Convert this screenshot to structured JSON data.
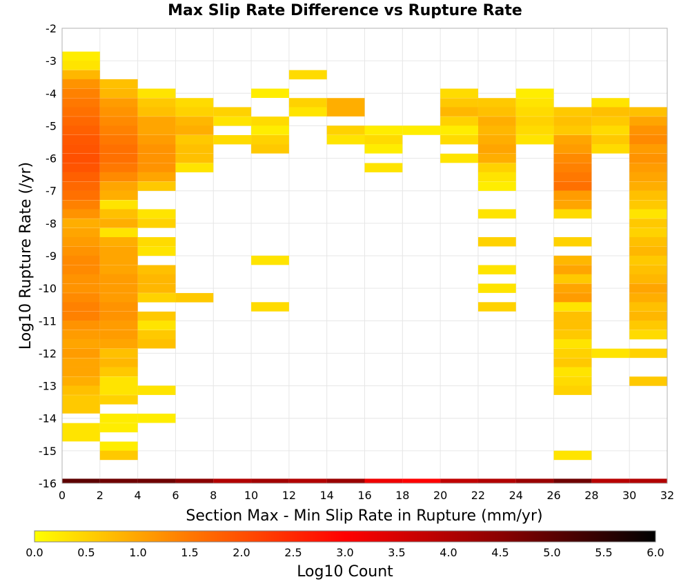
{
  "chart_data": {
    "type": "heatmap",
    "title": "Max Slip Rate Difference vs Rupture Rate",
    "xlabel": "Section Max - Min Slip Rate in Rupture (mm/yr)",
    "ylabel": "Log10 Rupture Rate (/yr)",
    "xlim": [
      0,
      32
    ],
    "ylim": [
      -16,
      -2
    ],
    "x_ticks": [
      "0",
      "2",
      "4",
      "6",
      "8",
      "10",
      "12",
      "14",
      "16",
      "18",
      "20",
      "22",
      "24",
      "26",
      "28",
      "30",
      "32"
    ],
    "y_ticks": [
      "-2",
      "-3",
      "-4",
      "-5",
      "-6",
      "-7",
      "-8",
      "-9",
      "-10",
      "-11",
      "-12",
      "-13",
      "-14",
      "-15",
      "-16"
    ],
    "grid": true,
    "x_bin_width": 2,
    "y_bin_height": 0.2857,
    "cells": [
      [
        1,
        -2.86,
        0.2
      ],
      [
        1,
        -3.14,
        0.3
      ],
      [
        1,
        -3.43,
        0.8
      ],
      [
        1,
        -3.71,
        1.2
      ],
      [
        1,
        -4.0,
        1.4
      ],
      [
        1,
        -4.29,
        1.5
      ],
      [
        1,
        -4.57,
        1.6
      ],
      [
        1,
        -4.86,
        1.7
      ],
      [
        1,
        -5.14,
        1.8
      ],
      [
        1,
        -5.43,
        1.9
      ],
      [
        1,
        -5.71,
        1.95
      ],
      [
        1,
        -6.0,
        2.0
      ],
      [
        1,
        -6.29,
        1.95
      ],
      [
        1,
        -6.57,
        1.8
      ],
      [
        1,
        -6.86,
        1.7
      ],
      [
        1,
        -7.14,
        1.6
      ],
      [
        1,
        -7.43,
        1.4
      ],
      [
        1,
        -7.71,
        1.2
      ],
      [
        1,
        -8.0,
        0.9
      ],
      [
        1,
        -8.29,
        1.0
      ],
      [
        1,
        -8.57,
        1.1
      ],
      [
        1,
        -8.86,
        1.2
      ],
      [
        1,
        -9.14,
        1.3
      ],
      [
        1,
        -9.43,
        1.3
      ],
      [
        1,
        -9.71,
        1.2
      ],
      [
        1,
        -10.0,
        1.2
      ],
      [
        1,
        -10.29,
        1.3
      ],
      [
        1,
        -10.57,
        1.4
      ],
      [
        1,
        -10.86,
        1.4
      ],
      [
        1,
        -11.14,
        1.2
      ],
      [
        1,
        -11.43,
        1.1
      ],
      [
        1,
        -11.71,
        1.0
      ],
      [
        1,
        -12.0,
        1.1
      ],
      [
        1,
        -12.29,
        1.0
      ],
      [
        1,
        -12.57,
        1.0
      ],
      [
        1,
        -12.86,
        0.9
      ],
      [
        1,
        -13.14,
        0.7
      ],
      [
        1,
        -13.43,
        0.6
      ],
      [
        1,
        -13.71,
        0.6
      ],
      [
        1,
        -14.29,
        0.3
      ],
      [
        1,
        -14.57,
        0.3
      ],
      [
        3,
        -3.71,
        0.7
      ],
      [
        3,
        -4.0,
        0.8
      ],
      [
        3,
        -4.29,
        1.1
      ],
      [
        3,
        -4.57,
        1.2
      ],
      [
        3,
        -4.86,
        1.3
      ],
      [
        3,
        -5.14,
        1.4
      ],
      [
        3,
        -5.43,
        1.5
      ],
      [
        3,
        -5.71,
        1.6
      ],
      [
        3,
        -6.0,
        1.6
      ],
      [
        3,
        -6.29,
        1.5
      ],
      [
        3,
        -6.57,
        1.3
      ],
      [
        3,
        -6.86,
        1.0
      ],
      [
        3,
        -7.14,
        0.9
      ],
      [
        3,
        -7.43,
        0.3
      ],
      [
        3,
        -7.71,
        0.7
      ],
      [
        3,
        -8.0,
        0.9
      ],
      [
        3,
        -8.29,
        0.3
      ],
      [
        3,
        -8.57,
        0.9
      ],
      [
        3,
        -8.86,
        1.0
      ],
      [
        3,
        -9.14,
        1.0
      ],
      [
        3,
        -9.43,
        1.0
      ],
      [
        3,
        -9.71,
        1.1
      ],
      [
        3,
        -10.0,
        1.1
      ],
      [
        3,
        -10.29,
        1.1
      ],
      [
        3,
        -10.57,
        1.2
      ],
      [
        3,
        -10.86,
        1.2
      ],
      [
        3,
        -11.14,
        1.1
      ],
      [
        3,
        -11.43,
        1.1
      ],
      [
        3,
        -11.71,
        1.0
      ],
      [
        3,
        -12.0,
        0.7
      ],
      [
        3,
        -12.29,
        0.8
      ],
      [
        3,
        -12.57,
        0.6
      ],
      [
        3,
        -12.86,
        0.3
      ],
      [
        3,
        -13.14,
        0.3
      ],
      [
        3,
        -13.43,
        0.5
      ],
      [
        3,
        -14.0,
        0.2
      ],
      [
        3,
        -14.29,
        0.2
      ],
      [
        3,
        -14.86,
        0.2
      ],
      [
        3,
        -15.14,
        0.6
      ],
      [
        5,
        -4.0,
        0.3
      ],
      [
        5,
        -4.29,
        0.6
      ],
      [
        5,
        -4.57,
        0.7
      ],
      [
        5,
        -4.86,
        1.0
      ],
      [
        5,
        -5.14,
        1.0
      ],
      [
        5,
        -5.43,
        1.1
      ],
      [
        5,
        -5.71,
        1.2
      ],
      [
        5,
        -6.0,
        1.2
      ],
      [
        5,
        -6.29,
        1.2
      ],
      [
        5,
        -6.57,
        1.0
      ],
      [
        5,
        -6.86,
        0.6
      ],
      [
        5,
        -7.71,
        0.3
      ],
      [
        5,
        -8.0,
        0.5
      ],
      [
        5,
        -8.57,
        0.4
      ],
      [
        5,
        -8.86,
        0.3
      ],
      [
        5,
        -9.43,
        0.7
      ],
      [
        5,
        -9.71,
        0.8
      ],
      [
        5,
        -10.0,
        0.8
      ],
      [
        5,
        -10.29,
        0.5
      ],
      [
        5,
        -10.86,
        0.6
      ],
      [
        5,
        -11.14,
        0.3
      ],
      [
        5,
        -11.43,
        0.6
      ],
      [
        5,
        -11.71,
        0.7
      ],
      [
        5,
        -13.14,
        0.3
      ],
      [
        5,
        -14.0,
        0.2
      ],
      [
        7,
        -4.29,
        0.4
      ],
      [
        7,
        -4.57,
        0.5
      ],
      [
        7,
        -4.86,
        0.8
      ],
      [
        7,
        -5.14,
        0.9
      ],
      [
        7,
        -5.43,
        0.6
      ],
      [
        7,
        -5.71,
        0.7
      ],
      [
        7,
        -6.0,
        0.7
      ],
      [
        7,
        -6.29,
        0.3
      ],
      [
        7,
        -10.29,
        0.6
      ],
      [
        9,
        -4.57,
        0.5
      ],
      [
        9,
        -4.86,
        0.3
      ],
      [
        9,
        -5.43,
        0.4
      ],
      [
        11,
        -4.0,
        0.2
      ],
      [
        11,
        -4.86,
        0.4
      ],
      [
        11,
        -5.14,
        0.2
      ],
      [
        11,
        -5.43,
        0.5
      ],
      [
        11,
        -5.71,
        0.6
      ],
      [
        11,
        -9.14,
        0.3
      ],
      [
        11,
        -10.57,
        0.4
      ],
      [
        13,
        -3.43,
        0.4
      ],
      [
        13,
        -4.29,
        0.5
      ],
      [
        13,
        -4.57,
        0.3
      ],
      [
        15,
        -4.29,
        0.9
      ],
      [
        15,
        -4.57,
        0.9
      ],
      [
        15,
        -5.14,
        0.5
      ],
      [
        15,
        -5.43,
        0.3
      ],
      [
        17,
        -5.14,
        0.2
      ],
      [
        17,
        -5.43,
        0.4
      ],
      [
        17,
        -5.71,
        0.2
      ],
      [
        17,
        -6.29,
        0.3
      ],
      [
        19,
        -5.14,
        0.2
      ],
      [
        21,
        -4.0,
        0.4
      ],
      [
        21,
        -4.29,
        0.6
      ],
      [
        21,
        -4.57,
        0.8
      ],
      [
        21,
        -4.86,
        0.5
      ],
      [
        21,
        -5.14,
        0.2
      ],
      [
        21,
        -5.43,
        0.4
      ],
      [
        21,
        -6.0,
        0.3
      ],
      [
        23,
        -4.29,
        0.6
      ],
      [
        23,
        -4.57,
        0.7
      ],
      [
        23,
        -4.86,
        0.9
      ],
      [
        23,
        -5.14,
        0.8
      ],
      [
        23,
        -5.43,
        0.9
      ],
      [
        23,
        -5.71,
        1.0
      ],
      [
        23,
        -6.0,
        0.9
      ],
      [
        23,
        -6.29,
        0.5
      ],
      [
        23,
        -6.57,
        0.3
      ],
      [
        23,
        -6.86,
        0.2
      ],
      [
        23,
        -7.71,
        0.3
      ],
      [
        23,
        -8.57,
        0.5
      ],
      [
        23,
        -9.43,
        0.3
      ],
      [
        23,
        -10.0,
        0.3
      ],
      [
        23,
        -10.57,
        0.5
      ],
      [
        25,
        -4.0,
        0.2
      ],
      [
        25,
        -4.29,
        0.3
      ],
      [
        25,
        -4.57,
        0.4
      ],
      [
        25,
        -4.86,
        0.5
      ],
      [
        25,
        -5.14,
        0.4
      ],
      [
        25,
        -5.43,
        0.3
      ],
      [
        27,
        -4.57,
        0.6
      ],
      [
        27,
        -4.86,
        0.7
      ],
      [
        27,
        -5.14,
        0.6
      ],
      [
        27,
        -5.43,
        1.0
      ],
      [
        27,
        -5.71,
        1.1
      ],
      [
        27,
        -6.0,
        1.3
      ],
      [
        27,
        -6.29,
        1.4
      ],
      [
        27,
        -6.57,
        1.5
      ],
      [
        27,
        -6.86,
        1.6
      ],
      [
        27,
        -7.14,
        1.1
      ],
      [
        27,
        -7.43,
        1.0
      ],
      [
        27,
        -7.71,
        0.4
      ],
      [
        27,
        -8.57,
        0.5
      ],
      [
        27,
        -9.14,
        0.8
      ],
      [
        27,
        -9.43,
        1.0
      ],
      [
        27,
        -9.71,
        0.6
      ],
      [
        27,
        -10.0,
        1.0
      ],
      [
        27,
        -10.29,
        1.1
      ],
      [
        27,
        -10.57,
        0.3
      ],
      [
        27,
        -10.86,
        0.7
      ],
      [
        27,
        -11.14,
        0.7
      ],
      [
        27,
        -11.43,
        0.6
      ],
      [
        27,
        -11.71,
        0.3
      ],
      [
        27,
        -12.0,
        0.5
      ],
      [
        27,
        -12.29,
        0.6
      ],
      [
        27,
        -12.57,
        0.3
      ],
      [
        27,
        -12.86,
        0.4
      ],
      [
        27,
        -13.14,
        0.5
      ],
      [
        27,
        -15.14,
        0.3
      ],
      [
        29,
        -4.29,
        0.3
      ],
      [
        29,
        -4.57,
        0.7
      ],
      [
        29,
        -4.86,
        0.6
      ],
      [
        29,
        -5.14,
        0.4
      ],
      [
        29,
        -5.43,
        0.6
      ],
      [
        29,
        -5.71,
        0.4
      ],
      [
        29,
        -12.0,
        0.3
      ],
      [
        31,
        -4.57,
        0.7
      ],
      [
        31,
        -4.86,
        1.0
      ],
      [
        31,
        -5.14,
        1.2
      ],
      [
        31,
        -5.43,
        1.3
      ],
      [
        31,
        -5.71,
        1.1
      ],
      [
        31,
        -6.0,
        1.2
      ],
      [
        31,
        -6.29,
        1.1
      ],
      [
        31,
        -6.57,
        1.0
      ],
      [
        31,
        -6.86,
        0.9
      ],
      [
        31,
        -7.14,
        0.7
      ],
      [
        31,
        -7.43,
        0.6
      ],
      [
        31,
        -7.71,
        0.3
      ],
      [
        31,
        -8.0,
        0.6
      ],
      [
        31,
        -8.29,
        0.5
      ],
      [
        31,
        -8.57,
        0.7
      ],
      [
        31,
        -8.86,
        0.8
      ],
      [
        31,
        -9.14,
        0.6
      ],
      [
        31,
        -9.43,
        0.7
      ],
      [
        31,
        -9.71,
        0.8
      ],
      [
        31,
        -10.0,
        1.0
      ],
      [
        31,
        -10.29,
        0.9
      ],
      [
        31,
        -10.57,
        0.7
      ],
      [
        31,
        -10.86,
        0.8
      ],
      [
        31,
        -11.14,
        0.6
      ],
      [
        31,
        -11.43,
        0.4
      ],
      [
        31,
        -12.0,
        0.5
      ],
      [
        31,
        -12.86,
        0.6
      ]
    ],
    "bottom_strip": {
      "y": -15.93,
      "values": [
        5.0,
        4.8,
        4.8,
        4.5,
        4.0,
        4.2,
        4.0,
        4.3,
        3.2,
        3.0,
        3.8,
        4.0,
        4.3,
        4.8,
        3.9,
        4.0
      ]
    },
    "colorbar": {
      "label": "Log10 Count",
      "range": [
        0.0,
        6.0
      ],
      "ticks": [
        "0.0",
        "0.5",
        "1.0",
        "1.5",
        "2.0",
        "2.5",
        "3.0",
        "3.5",
        "4.0",
        "4.5",
        "5.0",
        "5.5",
        "6.0"
      ],
      "colors": [
        "#ffff00",
        "#ff7800",
        "#ff0000",
        "#8b0000",
        "#000000"
      ]
    }
  }
}
